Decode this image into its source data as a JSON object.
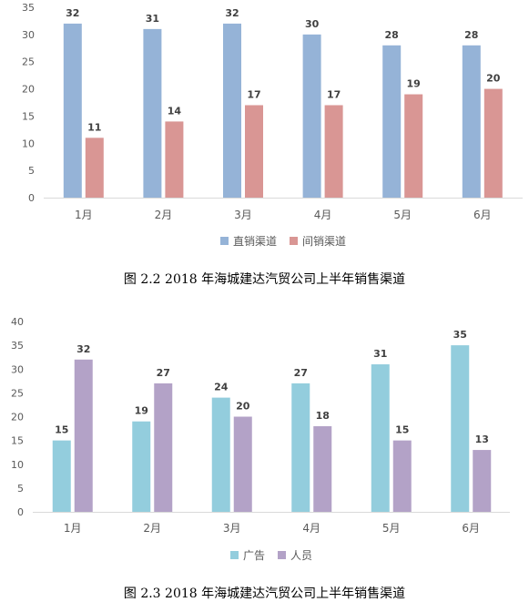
{
  "chart_data": [
    {
      "type": "bar",
      "categories": [
        "1月",
        "2月",
        "3月",
        "4月",
        "5月",
        "6月"
      ],
      "series": [
        {
          "name": "直销渠道",
          "values": [
            32,
            31,
            32,
            30,
            28,
            28
          ],
          "color": "#95b3d7"
        },
        {
          "name": "间销渠道",
          "values": [
            11,
            14,
            17,
            17,
            19,
            20
          ],
          "color": "#d99694"
        }
      ],
      "yticks": [
        0,
        5,
        10,
        15,
        20,
        25,
        30,
        35
      ],
      "ylim": [
        0,
        35
      ],
      "legend": "bottom",
      "grid": false,
      "caption": "图 2.2    2018 年海城建达汽贸公司上半年销售渠道"
    },
    {
      "type": "bar",
      "categories": [
        "1月",
        "2月",
        "3月",
        "4月",
        "5月",
        "6月"
      ],
      "series": [
        {
          "name": "广告",
          "values": [
            15,
            19,
            24,
            27,
            31,
            35
          ],
          "color": "#93cddd"
        },
        {
          "name": "人员",
          "values": [
            32,
            27,
            20,
            18,
            15,
            13
          ],
          "color": "#b3a2c7"
        }
      ],
      "yticks": [
        0,
        5,
        10,
        15,
        20,
        25,
        30,
        35,
        40
      ],
      "ylim": [
        0,
        40
      ],
      "legend": "bottom",
      "grid": false,
      "caption": "图 2.3    2018 年海城建达汽贸公司上半年销售渠道"
    }
  ]
}
